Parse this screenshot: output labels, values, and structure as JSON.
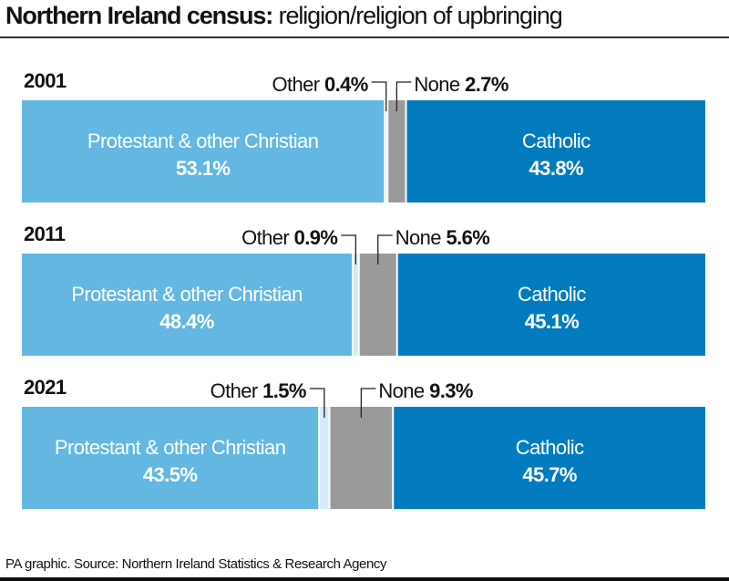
{
  "title": {
    "bold": "Northern Ireland census:",
    "regular": " religion/religion of upbringing"
  },
  "footer": "PA graphic. Source: Northern Ireland Statistics & Research Agency",
  "chart_data": {
    "type": "bar",
    "orientation": "horizontal",
    "stacked": true,
    "unit": "%",
    "categories": [
      "2001",
      "2011",
      "2021"
    ],
    "series": [
      {
        "name": "Protestant & other Christian",
        "values": [
          53.1,
          48.4,
          43.5
        ],
        "color": "#63b7e1"
      },
      {
        "name": "Other",
        "values": [
          0.4,
          0.9,
          1.5
        ],
        "color": "#d3ebf8"
      },
      {
        "name": "None",
        "values": [
          2.7,
          5.6,
          9.3
        ],
        "color": "#9a9a9a"
      },
      {
        "name": "Catholic",
        "values": [
          43.8,
          45.1,
          45.7
        ],
        "color": "#037cbf"
      }
    ],
    "value_labels": [
      [
        "53.1%",
        "0.4%",
        "2.7%",
        "43.8%"
      ],
      [
        "48.4%",
        "0.9%",
        "5.6%",
        "45.1%"
      ],
      [
        "43.5%",
        "1.5%",
        "9.3%",
        "45.7%"
      ]
    ],
    "xlim": [
      0,
      100
    ],
    "grid": false,
    "legend": "none"
  }
}
